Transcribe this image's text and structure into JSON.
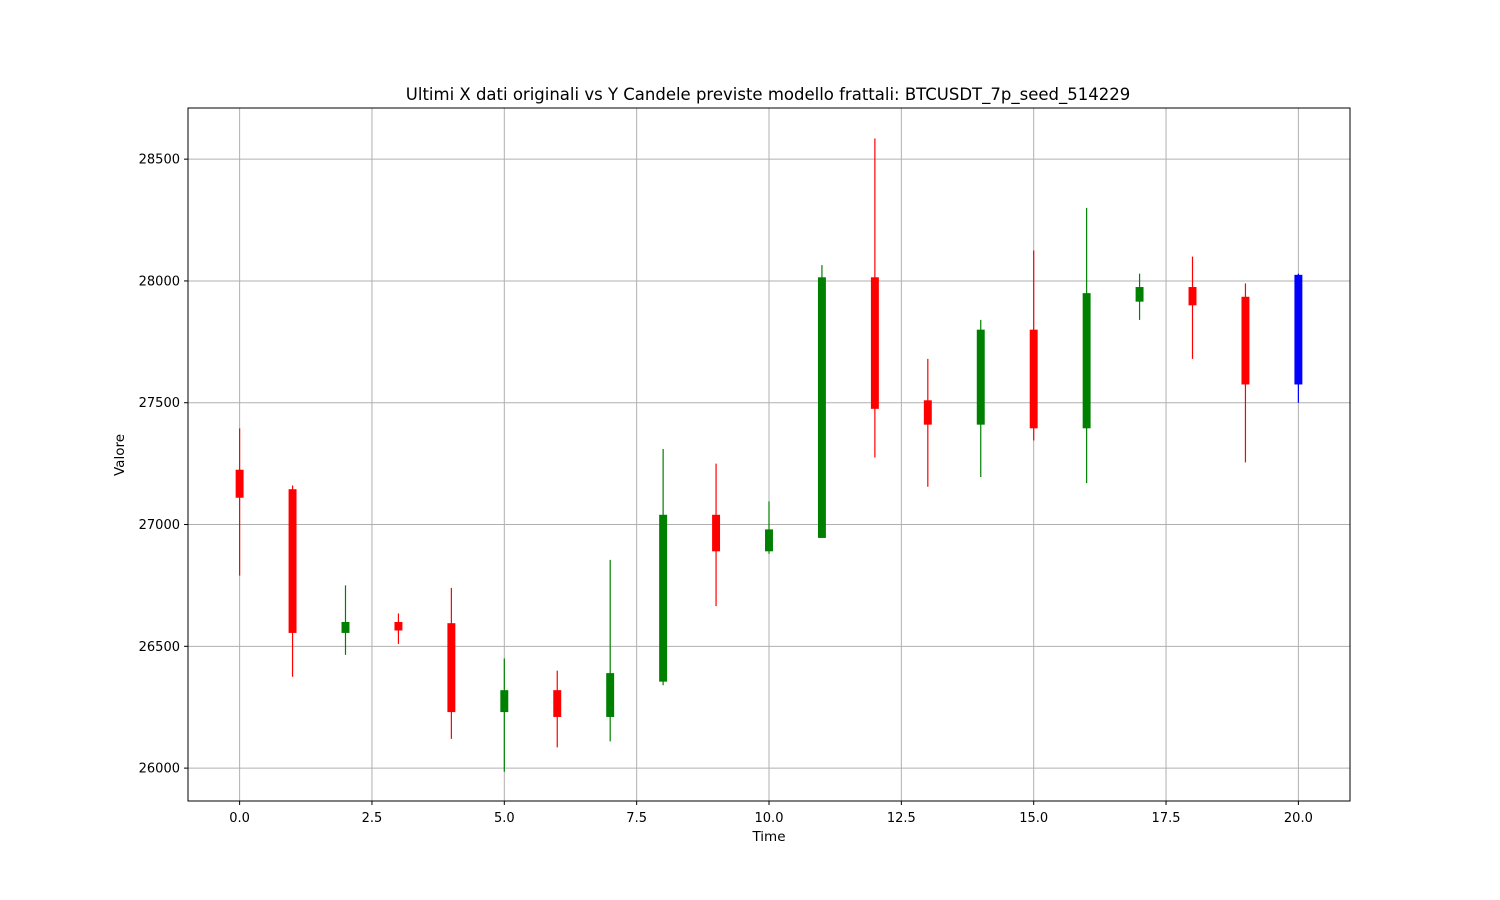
{
  "chart_data": {
    "type": "candlestick",
    "title": "Ultimi X dati originali vs Y Candele previste modello frattali: BTCUSDT_7p_seed_514229",
    "xlabel": "Time",
    "ylabel": "Valore",
    "xlim": [
      -0.975,
      20.975
    ],
    "ylim": [
      25865,
      28710
    ],
    "xticks": [
      0.0,
      2.5,
      5.0,
      7.5,
      10.0,
      12.5,
      15.0,
      17.5,
      20.0
    ],
    "xtick_labels": [
      "0.0",
      "2.5",
      "5.0",
      "7.5",
      "10.0",
      "12.5",
      "15.0",
      "17.5",
      "20.0"
    ],
    "yticks": [
      26000,
      26500,
      27000,
      27500,
      28000,
      28500
    ],
    "ytick_labels": [
      "26000",
      "26500",
      "27000",
      "27500",
      "28000",
      "28500"
    ],
    "grid": true,
    "colors": {
      "up": "#008000",
      "down": "#ff0000",
      "predicted": "#0000ff"
    },
    "candles": [
      {
        "x": 0,
        "open": 27225,
        "close": 27110,
        "high": 27395,
        "low": 26790,
        "color": "down"
      },
      {
        "x": 1,
        "open": 27145,
        "close": 26555,
        "high": 27160,
        "low": 26375,
        "color": "down"
      },
      {
        "x": 2,
        "open": 26555,
        "close": 26600,
        "high": 26750,
        "low": 26465,
        "color": "up"
      },
      {
        "x": 3,
        "open": 26600,
        "close": 26565,
        "high": 26635,
        "low": 26510,
        "color": "down"
      },
      {
        "x": 4,
        "open": 26595,
        "close": 26230,
        "high": 26740,
        "low": 26120,
        "color": "down"
      },
      {
        "x": 5,
        "open": 26230,
        "close": 26320,
        "high": 26450,
        "low": 25985,
        "color": "up"
      },
      {
        "x": 6,
        "open": 26320,
        "close": 26210,
        "high": 26400,
        "low": 26085,
        "color": "down"
      },
      {
        "x": 7,
        "open": 26210,
        "close": 26390,
        "high": 26855,
        "low": 26110,
        "color": "up"
      },
      {
        "x": 8,
        "open": 26355,
        "close": 27040,
        "high": 27310,
        "low": 26340,
        "color": "up"
      },
      {
        "x": 9,
        "open": 27040,
        "close": 26890,
        "high": 27250,
        "low": 26665,
        "color": "down"
      },
      {
        "x": 10,
        "open": 26890,
        "close": 26980,
        "high": 27095,
        "low": 26880,
        "color": "up"
      },
      {
        "x": 11,
        "open": 26945,
        "close": 28015,
        "high": 28065,
        "low": 26945,
        "color": "up"
      },
      {
        "x": 12,
        "open": 28015,
        "close": 27475,
        "high": 28585,
        "low": 27275,
        "color": "down"
      },
      {
        "x": 13,
        "open": 27510,
        "close": 27410,
        "high": 27680,
        "low": 27155,
        "color": "down"
      },
      {
        "x": 14,
        "open": 27410,
        "close": 27800,
        "high": 27840,
        "low": 27195,
        "color": "up"
      },
      {
        "x": 15,
        "open": 27800,
        "close": 27395,
        "high": 28125,
        "low": 27345,
        "color": "down"
      },
      {
        "x": 16,
        "open": 27395,
        "close": 27950,
        "high": 28300,
        "low": 27170,
        "color": "up"
      },
      {
        "x": 17,
        "open": 27915,
        "close": 27975,
        "high": 28030,
        "low": 27840,
        "color": "up"
      },
      {
        "x": 18,
        "open": 27975,
        "close": 27900,
        "high": 28100,
        "low": 27680,
        "color": "down"
      },
      {
        "x": 19,
        "open": 27935,
        "close": 27575,
        "high": 27990,
        "low": 27255,
        "color": "down"
      },
      {
        "x": 20,
        "open": 28025,
        "close": 27575,
        "high": 28030,
        "low": 27500,
        "color": "predicted"
      }
    ]
  }
}
